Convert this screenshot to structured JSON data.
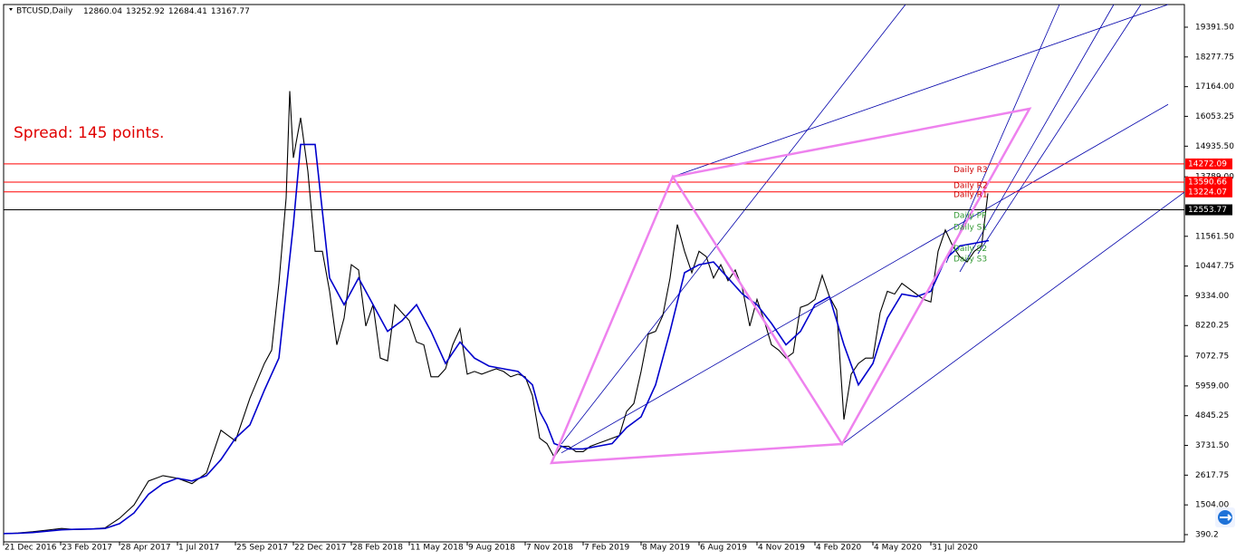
{
  "chart_data": {
    "type": "candlestick",
    "symbol": "BTCUSD,Daily",
    "ohlc": [
      12860.04,
      13252.92,
      12684.41,
      13167.77
    ],
    "spread_label": "Spread: 145 points.",
    "xlim": [
      0,
      1304
    ],
    "ylim": [
      119,
      20240
    ],
    "xticks": [
      {
        "value": 0,
        "label": "21 Dec 2016"
      },
      {
        "value": 63,
        "label": "23 Feb 2017"
      },
      {
        "value": 128,
        "label": "28 Apr 2017"
      },
      {
        "value": 192,
        "label": "1 Jul 2017"
      },
      {
        "value": 256,
        "label": "25 Sep 2017"
      },
      {
        "value": 320,
        "label": "22 Dec 2017"
      },
      {
        "value": 384,
        "label": "28 Feb 2018"
      },
      {
        "value": 448,
        "label": "11 May 2018"
      },
      {
        "value": 512,
        "label": "9 Aug 2018"
      },
      {
        "value": 576,
        "label": "7 Nov 2018"
      },
      {
        "value": 640,
        "label": "7 Feb 2019"
      },
      {
        "value": 704,
        "label": "8 May 2019"
      },
      {
        "value": 768,
        "label": "6 Aug 2019"
      },
      {
        "value": 832,
        "label": "4 Nov 2019"
      },
      {
        "value": 896,
        "label": "4 Feb 2020"
      },
      {
        "value": 960,
        "label": "4 May 2020"
      },
      {
        "value": 1024,
        "label": "31 Jul 2020"
      }
    ],
    "yticks": [
      390.2,
      {
        "value": 1504,
        "label": "1504.00"
      },
      2617.75,
      {
        "value": 3731.5,
        "label": "3731.50"
      },
      4845.25,
      {
        "value": 5959,
        "label": "5959.00"
      },
      7072.75,
      8220.25,
      {
        "value": 9334,
        "label": "9334.00"
      },
      10447.75,
      {
        "value": 11561.5,
        "label": "11561.50"
      },
      {
        "value": 13789,
        "label": "13789.00"
      },
      {
        "value": 14935.5,
        "label": "14935.50"
      },
      16053.25,
      {
        "value": 17164,
        "label": "17164.00"
      },
      18277.75,
      {
        "value": 19391.5,
        "label": "19391.50"
      }
    ],
    "series": [
      {
        "color": "#000000",
        "x": [
          0,
          16,
          32,
          48,
          64,
          80,
          96,
          112,
          128,
          144,
          160,
          176,
          192,
          208,
          224,
          240,
          256,
          272,
          288,
          296,
          304,
          312,
          316,
          320,
          328,
          336,
          344,
          352,
          360,
          368,
          376,
          384,
          392,
          400,
          408,
          416,
          424,
          432,
          440,
          448,
          456,
          464,
          472,
          480,
          488,
          496,
          504,
          512,
          520,
          528,
          536,
          544,
          552,
          560,
          568,
          576,
          584,
          592,
          600,
          608,
          616,
          624,
          632,
          640,
          648,
          656,
          664,
          672,
          680,
          688,
          696,
          704,
          712,
          720,
          728,
          736,
          744,
          752,
          760,
          768,
          776,
          784,
          792,
          800,
          808,
          816,
          824,
          832,
          840,
          848,
          856,
          864,
          872,
          880,
          888,
          896,
          904,
          912,
          920,
          928,
          936,
          944,
          952,
          960,
          968,
          976,
          984,
          992,
          1000,
          1008,
          1016,
          1024,
          1032,
          1040,
          1048,
          1056,
          1064,
          1072,
          1080,
          1087
        ],
        "values": [
          420,
          450,
          500,
          560,
          620,
          580,
          600,
          640,
          1000,
          1500,
          2400,
          2600,
          2500,
          2300,
          2700,
          4300,
          3900,
          5500,
          6800,
          7300,
          9800,
          13000,
          17000,
          14500,
          16000,
          14000,
          11000,
          11000,
          9500,
          7500,
          8500,
          10500,
          10300,
          8200,
          9000,
          7000,
          6900,
          9000,
          8700,
          8400,
          7600,
          7500,
          6300,
          6300,
          6600,
          7500,
          8100,
          6400,
          6500,
          6400,
          6500,
          6600,
          6500,
          6300,
          6400,
          6300,
          5600,
          4000,
          3800,
          3300,
          3700,
          3700,
          3500,
          3500,
          3700,
          3800,
          3900,
          4000,
          4100,
          5000,
          5300,
          6500,
          7900,
          8000,
          8600,
          10000,
          12000,
          11000,
          10200,
          11000,
          10800,
          10000,
          10500,
          9900,
          10300,
          9600,
          8200,
          9200,
          8400,
          7500,
          7300,
          7000,
          7200,
          8900,
          9000,
          9200,
          10100,
          9300,
          8800,
          4700,
          6400,
          6800,
          7000,
          7000,
          8700,
          9500,
          9400,
          9800,
          9600,
          9400,
          9200,
          9100,
          11000,
          11800,
          11200,
          10800,
          10600,
          11000,
          11200,
          13167.77
        ]
      },
      {
        "color": "#0000cc",
        "x": [
          0,
          16,
          32,
          48,
          64,
          80,
          96,
          112,
          128,
          144,
          160,
          176,
          192,
          208,
          224,
          240,
          256,
          272,
          288,
          304,
          312,
          320,
          328,
          336,
          344,
          352,
          360,
          376,
          392,
          408,
          424,
          440,
          456,
          472,
          488,
          504,
          520,
          536,
          552,
          568,
          584,
          592,
          600,
          608,
          624,
          640,
          656,
          672,
          688,
          704,
          720,
          736,
          752,
          768,
          784,
          800,
          816,
          832,
          848,
          864,
          880,
          896,
          912,
          928,
          944,
          960,
          976,
          992,
          1008,
          1024,
          1040,
          1056,
          1072,
          1088
        ],
        "values": [
          430,
          440,
          470,
          520,
          570,
          590,
          600,
          620,
          800,
          1200,
          1900,
          2300,
          2500,
          2400,
          2600,
          3200,
          4000,
          4500,
          5800,
          7000,
          9500,
          12000,
          15000,
          15000,
          15000,
          12500,
          10000,
          9000,
          10000,
          9000,
          8000,
          8400,
          9000,
          8000,
          6800,
          7600,
          7000,
          6700,
          6600,
          6500,
          6000,
          5000,
          4500,
          3800,
          3600,
          3600,
          3700,
          3800,
          4400,
          4800,
          6000,
          8000,
          10200,
          10500,
          10600,
          10000,
          9400,
          9000,
          8300,
          7500,
          8000,
          9000,
          9300,
          7500,
          6000,
          6800,
          8500,
          9400,
          9300,
          9500,
          10700,
          11200,
          11300,
          11400
        ]
      }
    ],
    "levels": [
      {
        "value": 14272.09,
        "color": "#ff0000"
      },
      {
        "value": 13590.66,
        "color": "#ff0000"
      },
      {
        "value": 13224.07,
        "color": "#ff0000"
      },
      {
        "value": 12553.77,
        "color": "#000000"
      }
    ],
    "pivots": [
      {
        "name": "Daily R3",
        "value": 14050,
        "color": "#cc0000"
      },
      {
        "name": "Daily R2",
        "value": 13450,
        "color": "#cc0000"
      },
      {
        "name": "Daily R1",
        "value": 13120,
        "color": "#cc0000"
      },
      {
        "name": "Daily PP",
        "value": 12330,
        "color": "#339933"
      },
      {
        "name": "Daily S1",
        "value": 11900,
        "color": "#339933"
      },
      {
        "name": "Daily S2",
        "value": 11100,
        "color": "#339933"
      },
      {
        "name": "Daily S3",
        "value": 10700,
        "color": "#339933"
      }
    ],
    "pattern": {
      "color": "#ee82ee",
      "x": [
        605,
        739,
        926,
        1133,
        739,
        605,
        926
      ],
      "values": [
        3071,
        13793,
        3783,
        16337,
        13793,
        3071,
        3783
      ]
    },
    "trendlines": {
      "color": "#0000aa",
      "lines": [
        [
          616,
          3783,
          996,
          20240
        ],
        [
          739,
          13793,
          1286,
          20240
        ],
        [
          926,
          3783,
          1304,
          13215
        ],
        [
          616,
          3450,
          1286,
          16500
        ],
        [
          1041,
          10570,
          1166,
          20240
        ],
        [
          1056,
          10230,
          1226,
          20240
        ],
        [
          1076,
          10910,
          1256,
          20240
        ]
      ]
    }
  }
}
